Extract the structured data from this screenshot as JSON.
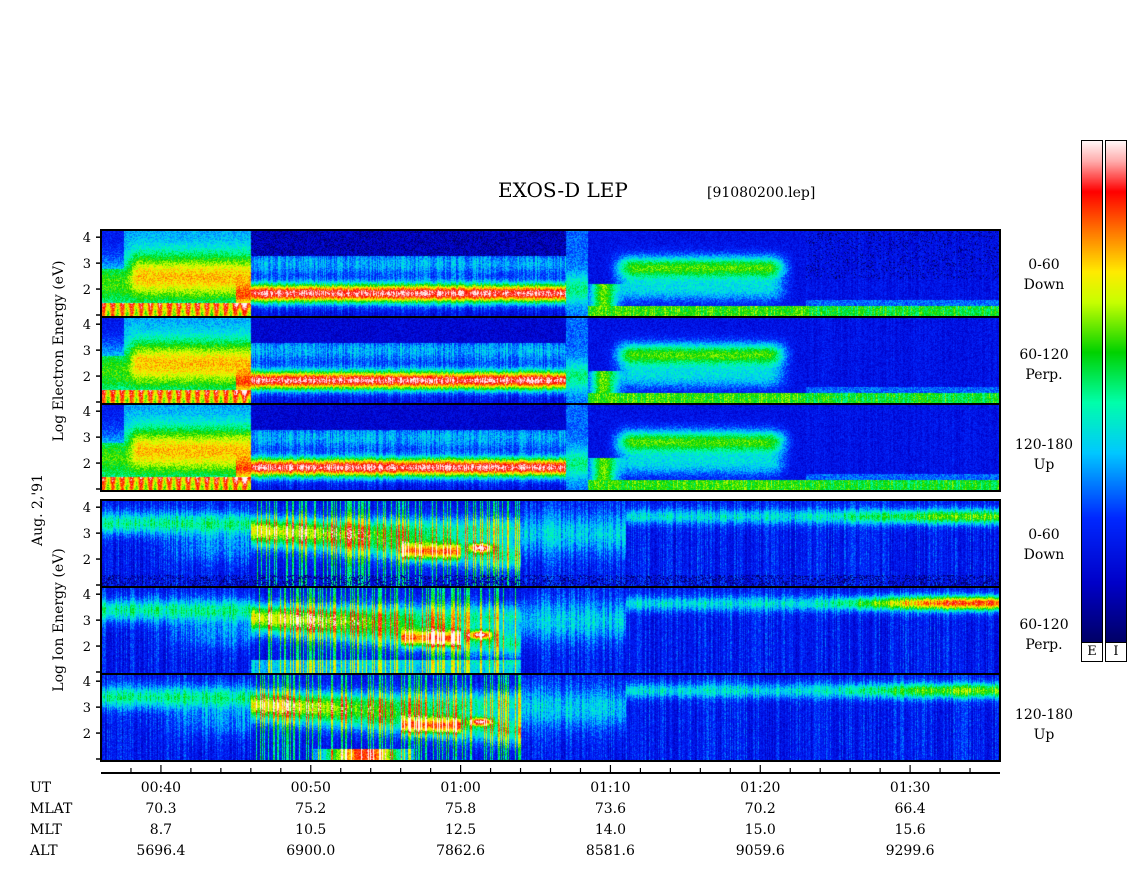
{
  "title": "EXOS-D LEP",
  "filename": "[91080200.lep]",
  "date_label": "Aug. 2,'91",
  "electron_label": "Log  Electron  Energy  (eV)",
  "ion_label": "Log  Ion  Energy  (eV)",
  "panels": [
    {
      "mode": [
        "0-60",
        "Down"
      ]
    },
    {
      "mode": [
        "60-120",
        "Perp."
      ]
    },
    {
      "mode": [
        "120-180",
        "Up"
      ]
    },
    {
      "mode": [
        "0-60",
        "Down"
      ]
    },
    {
      "mode": [
        "60-120",
        "Perp."
      ]
    },
    {
      "mode": [
        "120-180",
        "Up"
      ]
    }
  ],
  "yticks": [
    "1",
    "2",
    "3",
    "4"
  ],
  "colorbar": {
    "labels": [
      "E",
      "I"
    ]
  },
  "footer": {
    "row_labels": [
      "UT",
      "MLAT",
      "MLT",
      "ALT"
    ],
    "columns": [
      {
        "UT": "00:40",
        "MLAT": "70.3",
        "MLT": "8.7",
        "ALT": "5696.4"
      },
      {
        "UT": "00:50",
        "MLAT": "75.2",
        "MLT": "10.5",
        "ALT": "6900.0"
      },
      {
        "UT": "01:00",
        "MLAT": "75.8",
        "MLT": "12.5",
        "ALT": "7862.6"
      },
      {
        "UT": "01:10",
        "MLAT": "73.6",
        "MLT": "14.0",
        "ALT": "8581.6"
      },
      {
        "UT": "01:20",
        "MLAT": "70.2",
        "MLT": "15.0",
        "ALT": "9059.6"
      },
      {
        "UT": "01:30",
        "MLAT": "66.4",
        "MLT": "15.6",
        "ALT": "9299.6"
      }
    ]
  },
  "chart_data": {
    "type": "heatmap",
    "title": "EXOS-D LEP",
    "x_label": "UT",
    "x_ticks": [
      "00:40",
      "00:50",
      "01:00",
      "01:10",
      "01:20",
      "01:30"
    ],
    "x_range": [
      "00:36",
      "01:36"
    ],
    "y_label_electron": "Log Electron Energy (eV)",
    "y_label_ion": "Log Ion Energy (eV)",
    "y_range": [
      1,
      4.2
    ],
    "y_ticks": [
      1,
      2,
      3,
      4
    ],
    "series": [
      {
        "name": "Electron 0-60 Down",
        "species": "electron"
      },
      {
        "name": "Electron 60-120 Perp.",
        "species": "electron"
      },
      {
        "name": "Electron 120-180 Up",
        "species": "electron"
      },
      {
        "name": "Ion 0-60 Down",
        "species": "ion"
      },
      {
        "name": "Ion 60-120 Perp.",
        "species": "ion"
      },
      {
        "name": "Ion 120-180 Up",
        "species": "ion"
      }
    ],
    "colormap": [
      "#ffffff",
      "#ff0000",
      "#ff8800",
      "#ffff00",
      "#00dd00",
      "#00ffff",
      "#0000ff",
      "#000066"
    ]
  }
}
